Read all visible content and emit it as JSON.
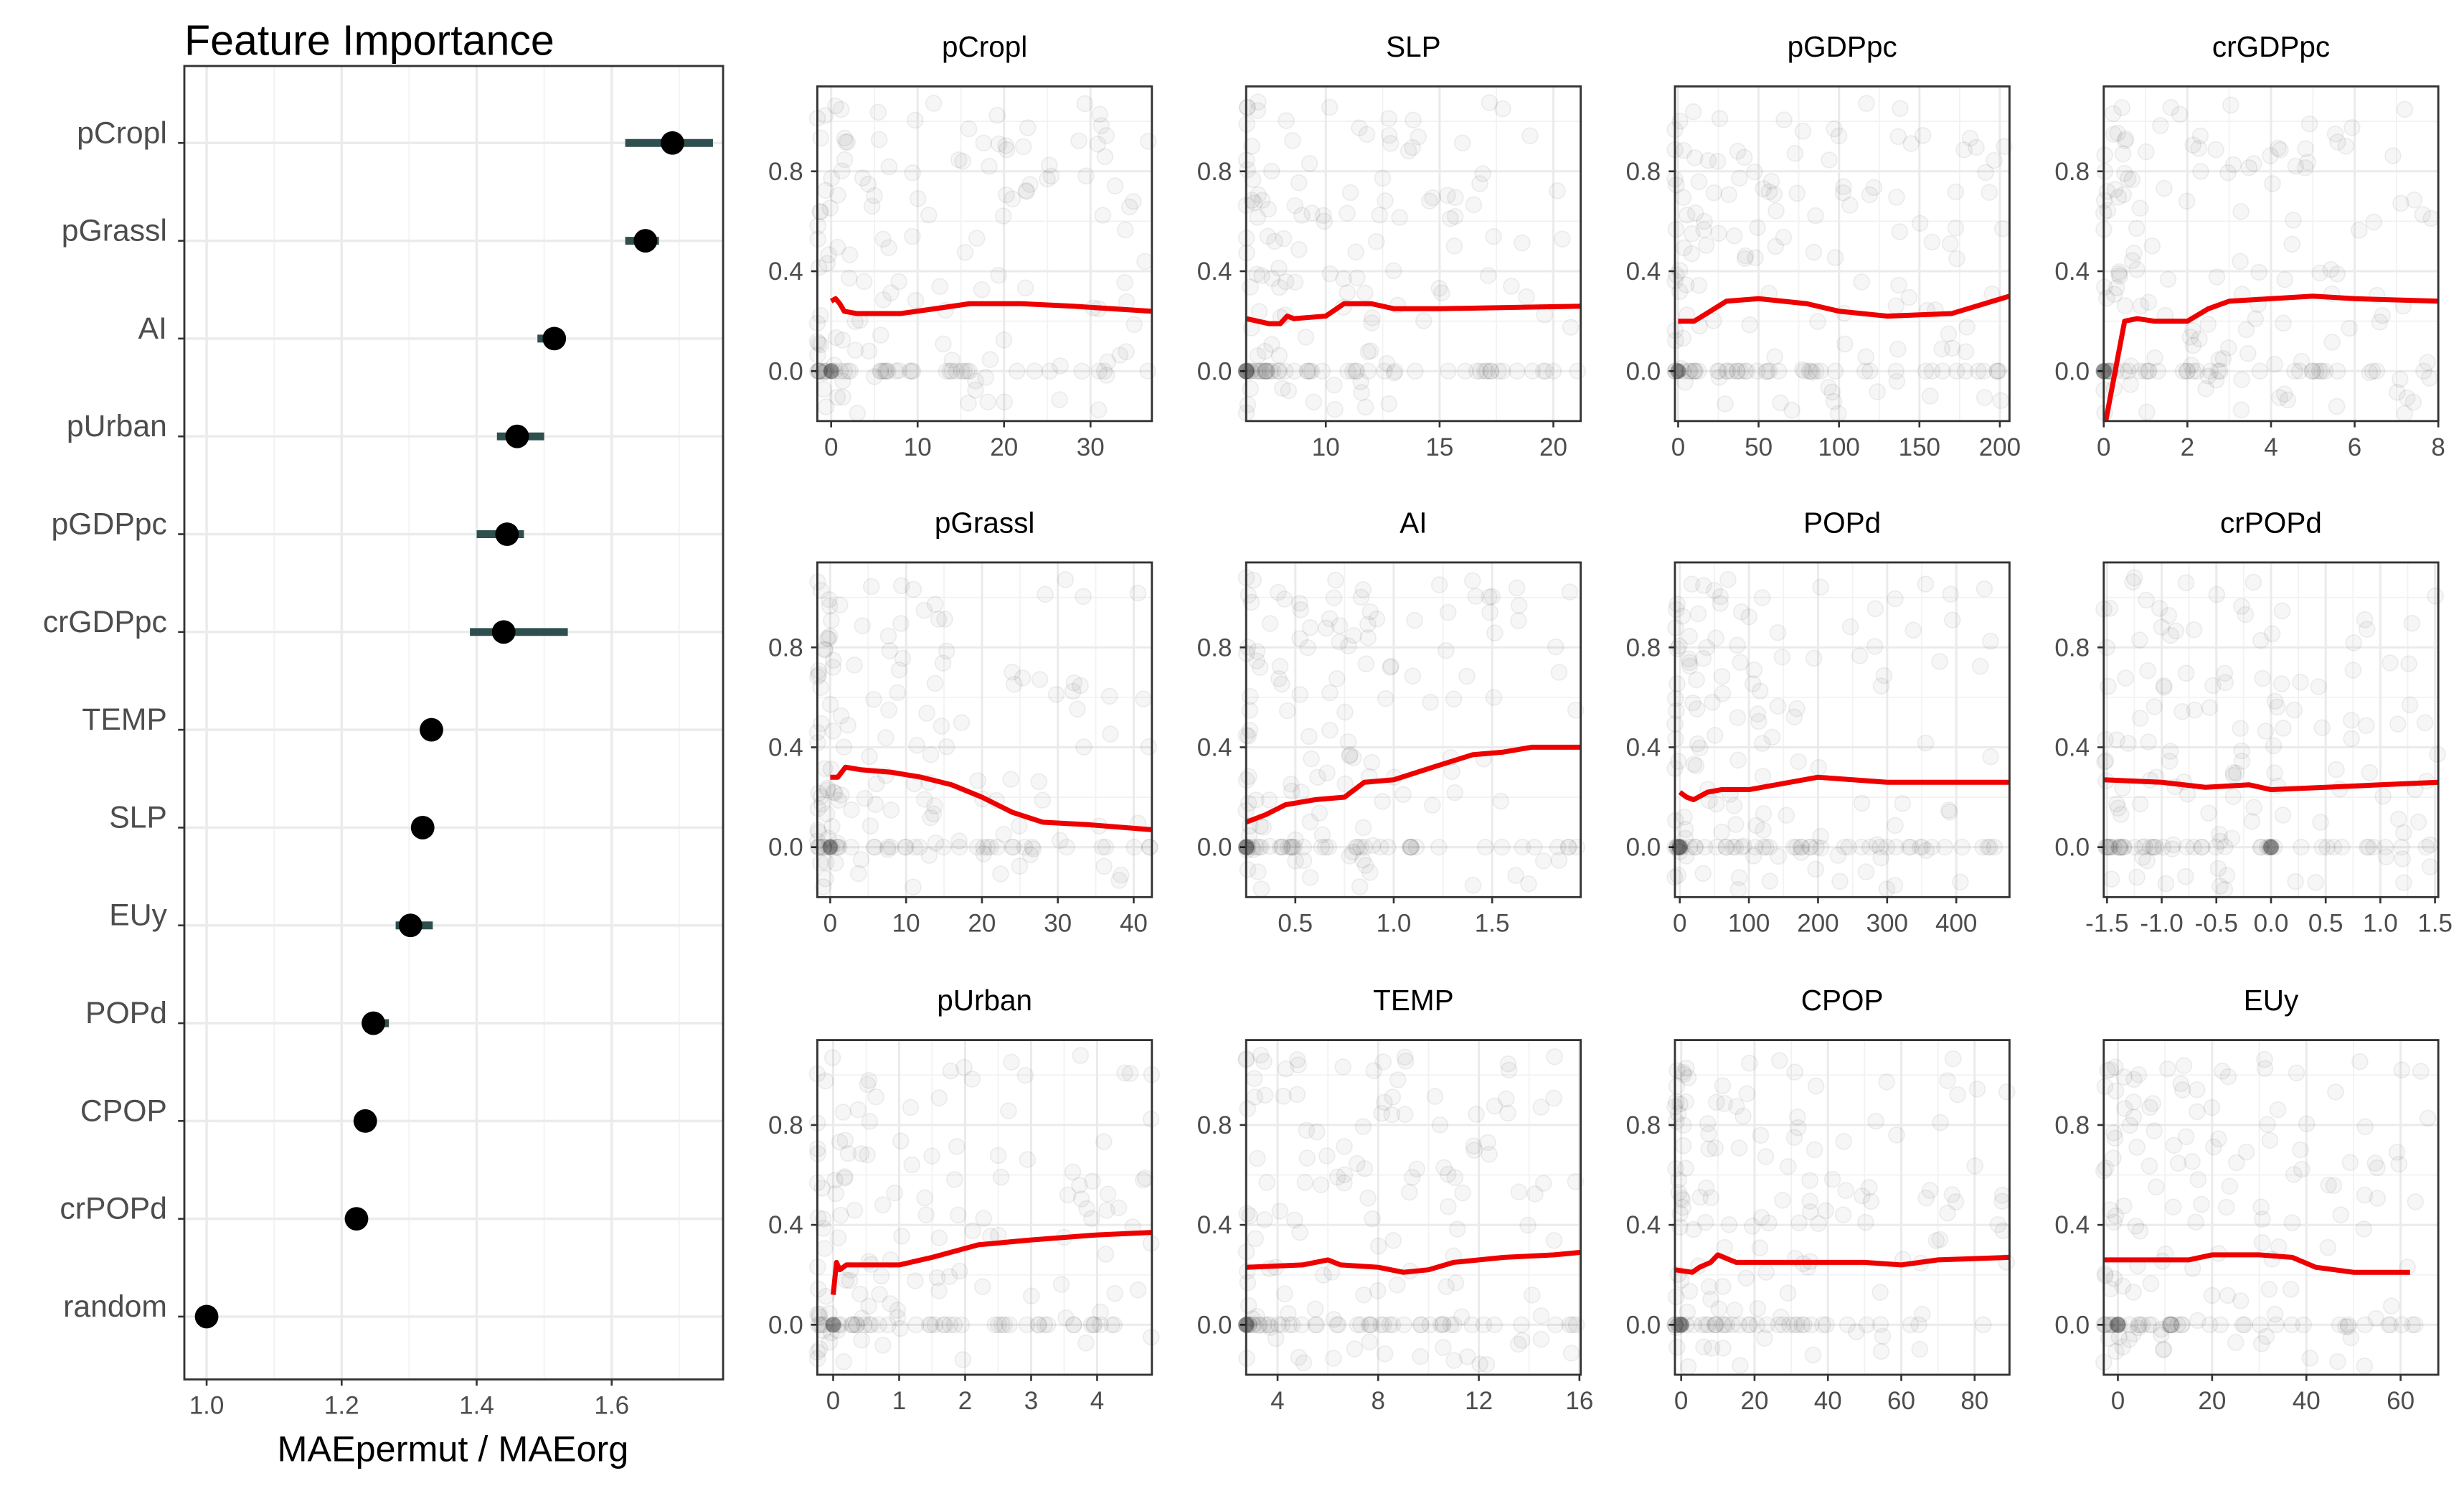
{
  "chart_data": [
    {
      "type": "scatter",
      "title": "Feature Importance",
      "xlabel": "MAEpermut / MAEorg",
      "ylabel": "",
      "xlim": [
        0.967,
        1.765
      ],
      "xticks": [
        1.0,
        1.2,
        1.4,
        1.6
      ],
      "grid": true,
      "features": [
        {
          "name": "pCropl",
          "value": 1.69,
          "low": 1.62,
          "high": 1.75
        },
        {
          "name": "pGrassl",
          "value": 1.65,
          "low": 1.62,
          "high": 1.67
        },
        {
          "name": "AI",
          "value": 1.515,
          "low": 1.49,
          "high": 1.52
        },
        {
          "name": "pUrban",
          "value": 1.46,
          "low": 1.43,
          "high": 1.5
        },
        {
          "name": "pGDPpc",
          "value": 1.445,
          "low": 1.4,
          "high": 1.47
        },
        {
          "name": "crGDPpc",
          "value": 1.44,
          "low": 1.39,
          "high": 1.535
        },
        {
          "name": "TEMP",
          "value": 1.333,
          "low": 1.33,
          "high": 1.34
        },
        {
          "name": "SLP",
          "value": 1.32,
          "low": 1.315,
          "high": 1.325
        },
        {
          "name": "EUy",
          "value": 1.302,
          "low": 1.28,
          "high": 1.335
        },
        {
          "name": "POPd",
          "value": 1.247,
          "low": 1.235,
          "high": 1.27
        },
        {
          "name": "CPOP",
          "value": 1.235,
          "low": 1.23,
          "high": 1.24
        },
        {
          "name": "crPOPd",
          "value": 1.222,
          "low": 1.215,
          "high": 1.228
        },
        {
          "name": "random",
          "value": 1.0,
          "low": 1.0,
          "high": 1.0
        }
      ]
    },
    {
      "type": "line",
      "description_of_panels": "partial dependence (red) over observations (grey points)",
      "ylim": [
        -0.2,
        1.14
      ],
      "yticks": [
        0.0,
        0.4,
        0.8
      ],
      "panels": [
        {
          "title": "pCropl",
          "xlim": [
            -1.6,
            37.1
          ],
          "xticks": [
            0,
            10,
            20,
            30
          ],
          "line": [
            [
              0,
              0.28
            ],
            [
              0.5,
              0.29
            ],
            [
              1,
              0.27
            ],
            [
              1.5,
              0.24
            ],
            [
              3,
              0.23
            ],
            [
              8,
              0.23
            ],
            [
              12,
              0.25
            ],
            [
              16,
              0.27
            ],
            [
              22,
              0.27
            ],
            [
              28,
              0.26
            ],
            [
              37,
              0.24
            ]
          ]
        },
        {
          "title": "SLP",
          "xlim": [
            6.5,
            21.2
          ],
          "xticks": [
            10,
            15,
            20
          ],
          "line": [
            [
              6.5,
              0.21
            ],
            [
              7.5,
              0.19
            ],
            [
              8,
              0.19
            ],
            [
              8.3,
              0.22
            ],
            [
              8.6,
              0.21
            ],
            [
              10,
              0.22
            ],
            [
              10.8,
              0.27
            ],
            [
              12,
              0.27
            ],
            [
              13,
              0.25
            ],
            [
              15,
              0.25
            ],
            [
              21.2,
              0.26
            ]
          ]
        },
        {
          "title": "pGDPpc",
          "xlim": [
            -2,
            206
          ],
          "xticks": [
            0,
            50,
            100,
            150,
            200
          ],
          "line": [
            [
              0,
              0.2
            ],
            [
              10,
              0.2
            ],
            [
              20,
              0.24
            ],
            [
              30,
              0.28
            ],
            [
              50,
              0.29
            ],
            [
              80,
              0.27
            ],
            [
              100,
              0.24
            ],
            [
              130,
              0.22
            ],
            [
              170,
              0.23
            ],
            [
              206,
              0.3
            ]
          ]
        },
        {
          "title": "crGDPpc",
          "xlim": [
            0,
            8
          ],
          "xticks": [
            0,
            2,
            4,
            6,
            8
          ],
          "line": [
            [
              0.05,
              -0.2
            ],
            [
              0.5,
              0.2
            ],
            [
              0.8,
              0.21
            ],
            [
              1.2,
              0.2
            ],
            [
              2,
              0.2
            ],
            [
              2.5,
              0.25
            ],
            [
              3,
              0.28
            ],
            [
              4,
              0.29
            ],
            [
              5,
              0.3
            ],
            [
              6,
              0.29
            ],
            [
              8,
              0.28
            ]
          ]
        },
        {
          "title": "pGrassl",
          "xlim": [
            -1.7,
            42.4
          ],
          "xticks": [
            0,
            10,
            20,
            30,
            40
          ],
          "line": [
            [
              0,
              0.28
            ],
            [
              1,
              0.28
            ],
            [
              2,
              0.32
            ],
            [
              4,
              0.31
            ],
            [
              8,
              0.3
            ],
            [
              12,
              0.28
            ],
            [
              16,
              0.25
            ],
            [
              20,
              0.2
            ],
            [
              24,
              0.14
            ],
            [
              28,
              0.1
            ],
            [
              34,
              0.09
            ],
            [
              42.4,
              0.07
            ]
          ]
        },
        {
          "title": "AI",
          "xlim": [
            0.25,
            1.95
          ],
          "xticks": [
            0.5,
            1.0,
            1.5
          ],
          "line": [
            [
              0.25,
              0.1
            ],
            [
              0.35,
              0.13
            ],
            [
              0.45,
              0.17
            ],
            [
              0.6,
              0.19
            ],
            [
              0.75,
              0.2
            ],
            [
              0.85,
              0.26
            ],
            [
              1.0,
              0.27
            ],
            [
              1.2,
              0.32
            ],
            [
              1.4,
              0.37
            ],
            [
              1.55,
              0.38
            ],
            [
              1.7,
              0.4
            ],
            [
              1.95,
              0.4
            ]
          ]
        },
        {
          "title": "POPd",
          "xlim": [
            -7,
            477
          ],
          "xticks": [
            0,
            100,
            200,
            300,
            400
          ],
          "line": [
            [
              0,
              0.22
            ],
            [
              10,
              0.2
            ],
            [
              20,
              0.19
            ],
            [
              40,
              0.22
            ],
            [
              60,
              0.23
            ],
            [
              100,
              0.23
            ],
            [
              200,
              0.28
            ],
            [
              300,
              0.26
            ],
            [
              477,
              0.26
            ]
          ]
        },
        {
          "title": "crPOPd",
          "xlim": [
            -1.53,
            1.53
          ],
          "xticks": [
            -1.5,
            -1.0,
            -0.5,
            0.0,
            0.5,
            1.0,
            1.5
          ],
          "line": [
            [
              -1.53,
              0.27
            ],
            [
              -1,
              0.26
            ],
            [
              -0.6,
              0.24
            ],
            [
              -0.2,
              0.25
            ],
            [
              0,
              0.23
            ],
            [
              0.5,
              0.24
            ],
            [
              1,
              0.25
            ],
            [
              1.53,
              0.26
            ]
          ]
        },
        {
          "title": "pUrban",
          "xlim": [
            -0.24,
            4.83
          ],
          "xticks": [
            0,
            1,
            2,
            3,
            4
          ],
          "line": [
            [
              0,
              0.12
            ],
            [
              0.05,
              0.25
            ],
            [
              0.1,
              0.22
            ],
            [
              0.2,
              0.24
            ],
            [
              1,
              0.24
            ],
            [
              1.5,
              0.27
            ],
            [
              2.2,
              0.32
            ],
            [
              3,
              0.34
            ],
            [
              4,
              0.36
            ],
            [
              4.83,
              0.37
            ]
          ]
        },
        {
          "title": "TEMP",
          "xlim": [
            2.75,
            16.05
          ],
          "xticks": [
            4,
            8,
            12,
            16
          ],
          "line": [
            [
              2.75,
              0.23
            ],
            [
              5,
              0.24
            ],
            [
              6,
              0.26
            ],
            [
              6.5,
              0.24
            ],
            [
              8,
              0.23
            ],
            [
              9,
              0.21
            ],
            [
              10,
              0.22
            ],
            [
              11,
              0.25
            ],
            [
              13,
              0.27
            ],
            [
              15,
              0.28
            ],
            [
              16.05,
              0.29
            ]
          ]
        },
        {
          "title": "CPOP",
          "xlim": [
            -1.7,
            89.5
          ],
          "xticks": [
            0,
            20,
            40,
            60,
            80
          ],
          "line": [
            [
              -1.7,
              0.22
            ],
            [
              3,
              0.21
            ],
            [
              5,
              0.23
            ],
            [
              8,
              0.25
            ],
            [
              10,
              0.28
            ],
            [
              15,
              0.25
            ],
            [
              30,
              0.25
            ],
            [
              50,
              0.25
            ],
            [
              60,
              0.24
            ],
            [
              70,
              0.26
            ],
            [
              89.5,
              0.27
            ]
          ]
        },
        {
          "title": "EUy",
          "xlim": [
            -3,
            68
          ],
          "xticks": [
            0,
            20,
            40,
            60
          ],
          "line": [
            [
              -3,
              0.26
            ],
            [
              0,
              0.26
            ],
            [
              15,
              0.26
            ],
            [
              20,
              0.28
            ],
            [
              30,
              0.28
            ],
            [
              37,
              0.27
            ],
            [
              42,
              0.23
            ],
            [
              50,
              0.21
            ],
            [
              62,
              0.21
            ]
          ]
        }
      ]
    }
  ],
  "colors": {
    "line": "#ee0000",
    "errorbar": "#2f4f4f",
    "point": "#000000",
    "grid": "#ebebeb"
  }
}
